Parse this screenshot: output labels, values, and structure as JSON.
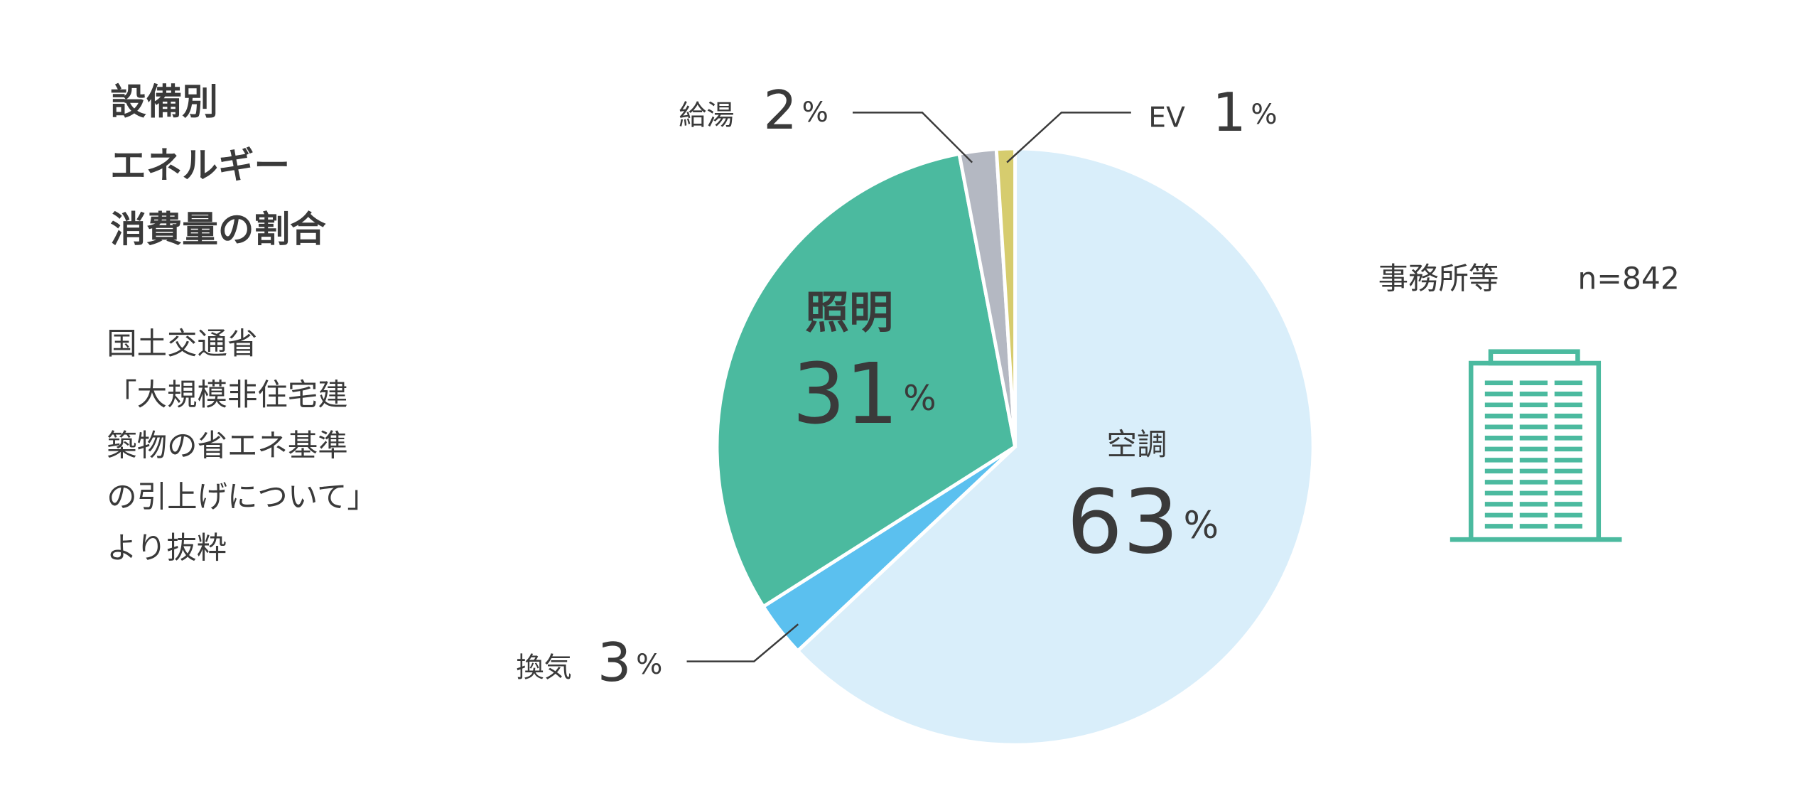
{
  "chart_data": {
    "type": "pie",
    "title_lines": [
      "設備別",
      "エネルギー",
      "消費量の割合"
    ],
    "source_lines": [
      "国土交通省",
      "「大規模非住宅建",
      "築物の省エネ基準",
      "の引上げについて」",
      "より抜粋"
    ],
    "building_label": "事務所等",
    "sample_size": "n=842",
    "unit": "%",
    "categories": [
      "空調",
      "換気",
      "照明",
      "給湯",
      "EV"
    ],
    "values": [
      63,
      3,
      31,
      2,
      1
    ],
    "colors": [
      "#d9eefa",
      "#5bc0ef",
      "#4bba9f",
      "#b4b8c2",
      "#d6cc6e"
    ]
  }
}
